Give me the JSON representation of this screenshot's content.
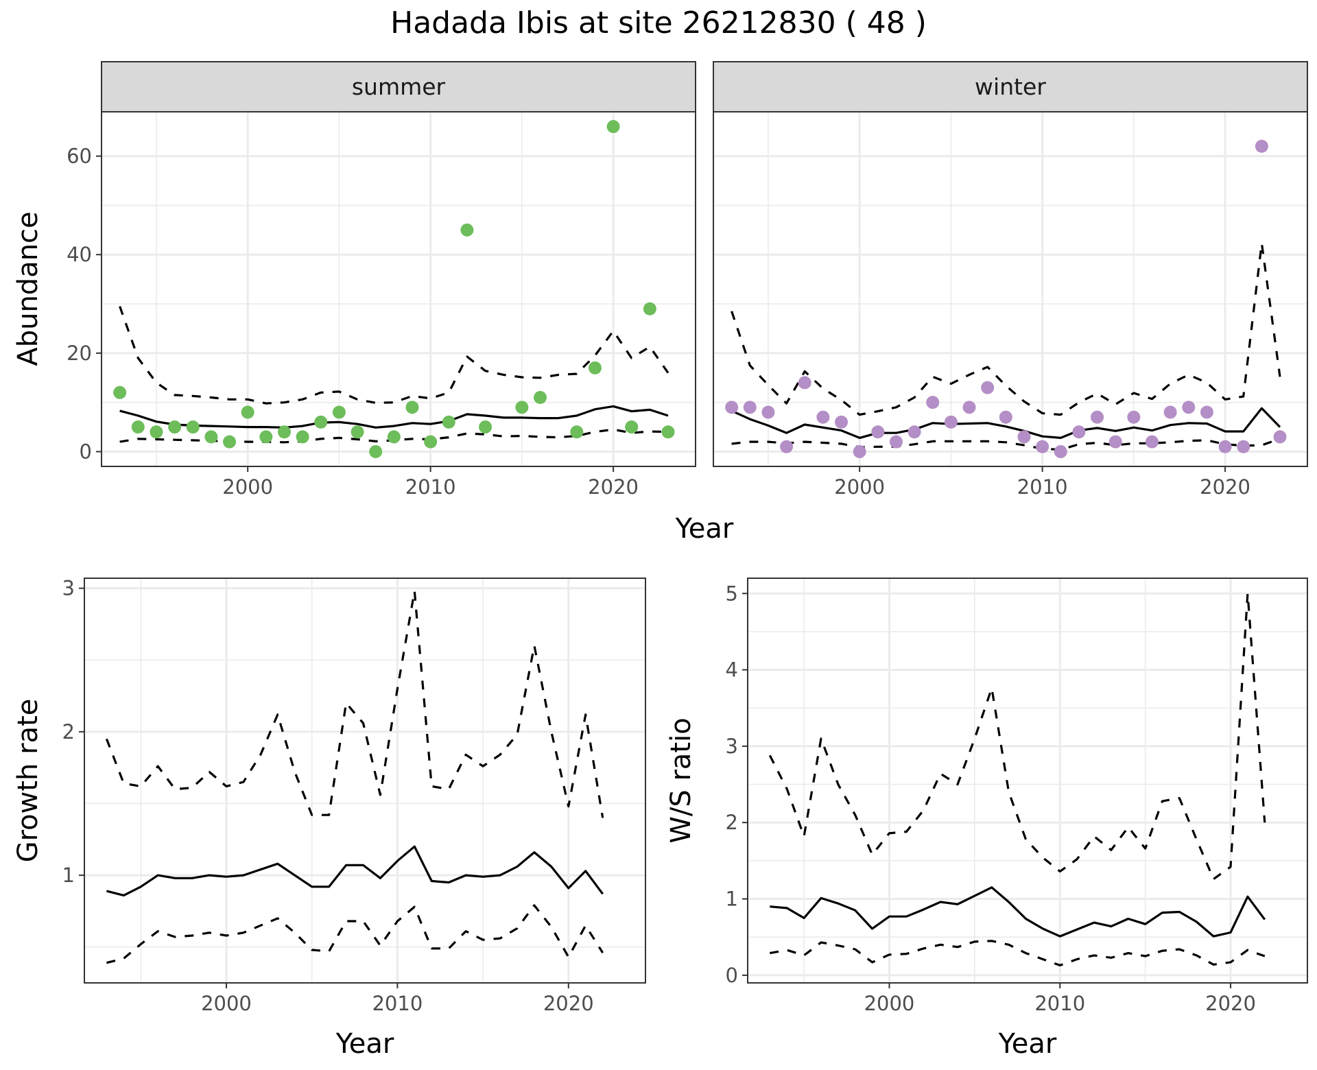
{
  "title": "Hadada Ibis at site 26212830 ( 48 )",
  "colors": {
    "summer_points": "#6dbd5a",
    "winter_points": "#b48ec6",
    "strip_bg": "#d9d9d9",
    "grid": "#ebebeb",
    "line": "#000000"
  },
  "chart_data": [
    {
      "id": "abundance",
      "type": "scatter",
      "facets": [
        "summer",
        "winter"
      ],
      "xlabel": "Year",
      "ylabel": "Abundance",
      "xlim": [
        1992,
        2024.5
      ],
      "ylim": [
        -3,
        69
      ],
      "xticks": [
        2000,
        2010,
        2020
      ],
      "yticks": [
        0,
        20,
        40,
        60
      ],
      "grid": true,
      "panels": {
        "summer": {
          "points": {
            "x": [
              1993,
              1994,
              1995,
              1996,
              1997,
              1998,
              1999,
              2000,
              2001,
              2002,
              2003,
              2004,
              2005,
              2006,
              2007,
              2008,
              2009,
              2010,
              2011,
              2012,
              2013,
              2015,
              2016,
              2018,
              2019,
              2020,
              2021,
              2022,
              2023
            ],
            "y": [
              12,
              5,
              4,
              5,
              5,
              3,
              2,
              8,
              3,
              4,
              3,
              6,
              8,
              4,
              0,
              3,
              9,
              2,
              6,
              45,
              5,
              9,
              11,
              4,
              17,
              66,
              5,
              29,
              4
            ]
          },
          "fit_years": [
            1993,
            1994,
            1995,
            1996,
            1997,
            1998,
            1999,
            2000,
            2001,
            2002,
            2003,
            2004,
            2005,
            2006,
            2007,
            2008,
            2009,
            2010,
            2011,
            2012,
            2013,
            2014,
            2015,
            2016,
            2017,
            2018,
            2019,
            2020,
            2021,
            2022,
            2023
          ],
          "fit": [
            8.3,
            7.3,
            6.1,
            5.5,
            5.3,
            5.2,
            5.1,
            5.0,
            5.0,
            4.9,
            5.2,
            5.9,
            6.0,
            5.6,
            4.9,
            5.2,
            5.8,
            5.6,
            6.2,
            7.6,
            7.3,
            6.9,
            6.9,
            6.8,
            6.8,
            7.3,
            8.6,
            9.2,
            8.2,
            8.5,
            7.3
          ],
          "upper": [
            29.5,
            19.0,
            14.0,
            11.5,
            11.3,
            11.0,
            10.6,
            10.6,
            9.8,
            10.0,
            10.6,
            12.0,
            12.2,
            10.6,
            9.9,
            10.0,
            11.3,
            10.8,
            12.0,
            19.3,
            16.4,
            15.6,
            15.1,
            15.0,
            15.6,
            15.8,
            19.5,
            24.5,
            19.0,
            21.3,
            16.0
          ],
          "lower": [
            2.0,
            2.6,
            2.5,
            2.4,
            2.3,
            2.2,
            2.1,
            2.0,
            2.0,
            1.9,
            2.1,
            2.6,
            2.8,
            2.5,
            2.1,
            2.3,
            2.6,
            2.5,
            2.9,
            3.7,
            3.5,
            3.1,
            3.2,
            3.0,
            2.9,
            3.2,
            4.0,
            4.5,
            3.8,
            4.1,
            4.0
          ]
        },
        "winter": {
          "points": {
            "x": [
              1993,
              1994,
              1995,
              1996,
              1997,
              1998,
              1999,
              2000,
              2001,
              2002,
              2003,
              2004,
              2005,
              2006,
              2007,
              2008,
              2009,
              2010,
              2011,
              2012,
              2013,
              2014,
              2015,
              2016,
              2017,
              2018,
              2019,
              2020,
              2021,
              2022,
              2023
            ],
            "y": [
              9,
              9,
              8,
              1,
              14,
              7,
              6,
              0,
              4,
              2,
              4,
              10,
              6,
              9,
              13,
              7,
              3,
              1,
              0,
              4,
              7,
              2,
              7,
              2,
              8,
              9,
              8,
              1,
              1,
              62,
              3
            ]
          },
          "fit_years": [
            1993,
            1994,
            1995,
            1996,
            1997,
            1998,
            1999,
            2000,
            2001,
            2002,
            2003,
            2004,
            2005,
            2006,
            2007,
            2008,
            2009,
            2010,
            2011,
            2012,
            2013,
            2014,
            2015,
            2016,
            2017,
            2018,
            2019,
            2020,
            2021,
            2022,
            2023
          ],
          "fit": [
            8.3,
            6.6,
            5.3,
            3.8,
            5.5,
            4.9,
            4.3,
            2.8,
            3.8,
            3.8,
            4.5,
            5.8,
            5.6,
            5.7,
            5.8,
            5.1,
            4.2,
            3.1,
            2.8,
            4.3,
            4.8,
            4.2,
            4.9,
            4.3,
            5.4,
            5.8,
            5.7,
            4.1,
            4.1,
            8.8,
            5.0
          ],
          "upper": [
            28.5,
            17.5,
            13.5,
            9.8,
            16.3,
            12.8,
            10.5,
            7.5,
            8.2,
            9.0,
            11.0,
            15.2,
            13.8,
            15.6,
            17.2,
            13.4,
            10.2,
            7.8,
            7.5,
            10.0,
            11.8,
            9.6,
            11.9,
            10.7,
            13.8,
            15.6,
            14.0,
            10.6,
            11.2,
            42.3,
            15.2
          ],
          "lower": [
            1.6,
            2.0,
            2.0,
            1.7,
            2.0,
            1.8,
            1.6,
            0.9,
            1.0,
            1.0,
            1.5,
            2.1,
            2.1,
            2.1,
            2.1,
            1.9,
            1.3,
            0.6,
            0.4,
            1.5,
            1.8,
            1.3,
            1.7,
            1.7,
            1.9,
            2.2,
            2.3,
            1.5,
            1.2,
            1.3,
            2.6
          ]
        }
      }
    },
    {
      "id": "growth",
      "type": "line",
      "xlabel": "Year",
      "ylabel": "Growth rate",
      "xlim": [
        1991.7,
        2024.5
      ],
      "ylim": [
        0.25,
        3.07
      ],
      "xticks": [
        2000,
        2010,
        2020
      ],
      "yticks": [
        1,
        2,
        3
      ],
      "grid": true,
      "x": [
        1993,
        1994,
        1995,
        1996,
        1997,
        1998,
        1999,
        2000,
        2001,
        2002,
        2003,
        2004,
        2005,
        2006,
        2007,
        2008,
        2009,
        2010,
        2011,
        2012,
        2013,
        2014,
        2015,
        2016,
        2017,
        2018,
        2019,
        2020,
        2021,
        2022
      ],
      "series": [
        {
          "name": "estimate",
          "style": "solid",
          "values": [
            0.89,
            0.86,
            0.92,
            1.0,
            0.98,
            0.98,
            1.0,
            0.99,
            1.0,
            1.04,
            1.08,
            1.0,
            0.92,
            0.92,
            1.07,
            1.07,
            0.98,
            1.1,
            1.2,
            0.96,
            0.95,
            1.0,
            0.99,
            1.0,
            1.06,
            1.16,
            1.06,
            0.91,
            1.03,
            0.87
          ]
        },
        {
          "name": "upper",
          "style": "dashed",
          "values": [
            1.95,
            1.64,
            1.62,
            1.76,
            1.6,
            1.61,
            1.72,
            1.62,
            1.65,
            1.84,
            2.12,
            1.72,
            1.42,
            1.42,
            2.2,
            2.06,
            1.56,
            2.3,
            2.98,
            1.62,
            1.6,
            1.84,
            1.76,
            1.84,
            1.98,
            2.6,
            2.0,
            1.48,
            2.12,
            1.4
          ]
        },
        {
          "name": "lower",
          "style": "dashed",
          "values": [
            0.39,
            0.42,
            0.52,
            0.61,
            0.57,
            0.58,
            0.6,
            0.58,
            0.6,
            0.65,
            0.7,
            0.6,
            0.48,
            0.47,
            0.68,
            0.68,
            0.51,
            0.68,
            0.78,
            0.49,
            0.49,
            0.61,
            0.55,
            0.56,
            0.63,
            0.79,
            0.64,
            0.43,
            0.65,
            0.46
          ]
        }
      ]
    },
    {
      "id": "ws_ratio",
      "type": "line",
      "xlabel": "Year",
      "ylabel": "W/S ratio",
      "xlim": [
        1991.7,
        2024.5
      ],
      "ylim": [
        -0.1,
        5.2
      ],
      "xticks": [
        2000,
        2010,
        2020
      ],
      "yticks": [
        0,
        1,
        2,
        3,
        4,
        5
      ],
      "grid": true,
      "x": [
        1993,
        1994,
        1995,
        1996,
        1997,
        1998,
        1999,
        2000,
        2001,
        2002,
        2003,
        2004,
        2005,
        2006,
        2007,
        2008,
        2009,
        2010,
        2011,
        2012,
        2013,
        2014,
        2015,
        2016,
        2017,
        2018,
        2019,
        2020,
        2021,
        2022
      ],
      "series": [
        {
          "name": "estimate",
          "style": "solid",
          "values": [
            0.9,
            0.88,
            0.75,
            1.01,
            0.94,
            0.85,
            0.61,
            0.77,
            0.77,
            0.86,
            0.96,
            0.93,
            1.04,
            1.15,
            0.96,
            0.74,
            0.61,
            0.51,
            0.6,
            0.69,
            0.64,
            0.74,
            0.67,
            0.82,
            0.83,
            0.7,
            0.51,
            0.56,
            1.03,
            0.73
          ]
        },
        {
          "name": "upper",
          "style": "dashed",
          "values": [
            2.88,
            2.44,
            1.82,
            3.1,
            2.5,
            2.1,
            1.58,
            1.86,
            1.88,
            2.16,
            2.64,
            2.5,
            3.1,
            3.76,
            2.4,
            1.78,
            1.54,
            1.36,
            1.52,
            1.82,
            1.64,
            1.94,
            1.66,
            2.28,
            2.32,
            1.78,
            1.26,
            1.42,
            5.0,
            2.0
          ]
        },
        {
          "name": "lower",
          "style": "dashed",
          "values": [
            0.29,
            0.33,
            0.26,
            0.43,
            0.39,
            0.34,
            0.17,
            0.27,
            0.28,
            0.35,
            0.4,
            0.37,
            0.44,
            0.45,
            0.4,
            0.29,
            0.21,
            0.13,
            0.21,
            0.26,
            0.23,
            0.29,
            0.25,
            0.32,
            0.34,
            0.26,
            0.14,
            0.17,
            0.33,
            0.25
          ]
        }
      ]
    }
  ]
}
